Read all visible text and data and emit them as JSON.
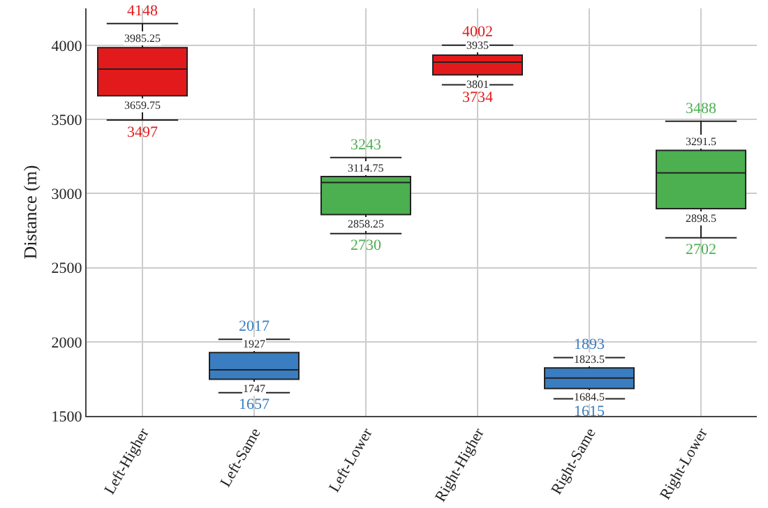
{
  "chart_data": {
    "type": "box",
    "ylabel": "Distance (m)",
    "categories": [
      "Left-Higher",
      "Left-Same",
      "Left-Lower",
      "Right-Higher",
      "Right-Same",
      "Right-Lower"
    ],
    "series": [
      {
        "color": "#e31a1c",
        "boxes": [
          {
            "low": 3497,
            "q1": 3659.75,
            "median": 3840,
            "q3": 3985.25,
            "high": 4148
          },
          null,
          null,
          {
            "low": 3734,
            "q1": 3801,
            "median": 3887,
            "q3": 3935,
            "high": 4002
          },
          null,
          null
        ]
      },
      {
        "color": "#3a7dc0",
        "boxes": [
          null,
          {
            "low": 1657,
            "q1": 1747,
            "median": 1811,
            "q3": 1927,
            "high": 2017
          },
          null,
          null,
          {
            "low": 1615,
            "q1": 1684.5,
            "median": 1755,
            "q3": 1823.5,
            "high": 1893
          },
          null
        ]
      },
      {
        "color": "#4caf50",
        "boxes": [
          null,
          null,
          {
            "low": 2730,
            "q1": 2858.25,
            "median": 3075,
            "q3": 3114.75,
            "high": 3243
          },
          null,
          null,
          {
            "low": 2702,
            "q1": 2898.5,
            "median": 3140,
            "q3": 3291.5,
            "high": 3488
          }
        ]
      }
    ],
    "annotations": [
      {
        "text": "4148",
        "x": "Left-Higher",
        "y": 4148
      },
      {
        "text": "3985.25",
        "x": "Left-Higher",
        "y": 3985.25
      },
      {
        "text": "3659.75",
        "x": "Left-Higher",
        "y": 3659.75
      },
      {
        "text": "3497",
        "x": "Left-Higher",
        "y": 3497
      },
      {
        "text": "2017",
        "x": "Left-Same",
        "y": 2017
      },
      {
        "text": "1927",
        "x": "Left-Same",
        "y": 1927
      },
      {
        "text": "1747",
        "x": "Left-Same",
        "y": 1747
      },
      {
        "text": "1657",
        "x": "Left-Same",
        "y": 1657
      },
      {
        "text": "3243",
        "x": "Left-Lower",
        "y": 3243
      },
      {
        "text": "3114.75",
        "x": "Left-Lower",
        "y": 3114.75
      },
      {
        "text": "2858.25",
        "x": "Left-Lower",
        "y": 2858.25
      },
      {
        "text": "2730",
        "x": "Left-Lower",
        "y": 2730
      },
      {
        "text": "4002",
        "x": "Right-Higher",
        "y": 4002
      },
      {
        "text": "3935",
        "x": "Right-Higher",
        "y": 3935
      },
      {
        "text": "3801",
        "x": "Right-Higher",
        "y": 3801
      },
      {
        "text": "3734",
        "x": "Right-Higher",
        "y": 3734
      },
      {
        "text": "1893",
        "x": "Right-Same",
        "y": 1893
      },
      {
        "text": "1823.5",
        "x": "Right-Same",
        "y": 1823.5
      },
      {
        "text": "1684.5",
        "x": "Right-Same",
        "y": 1684.5
      },
      {
        "text": "1615",
        "x": "Right-Same",
        "y": 1615
      },
      {
        "text": "3488",
        "x": "Right-Lower",
        "y": 3488
      },
      {
        "text": "3291.5",
        "x": "Right-Lower",
        "y": 3291.5
      },
      {
        "text": "2898.5",
        "x": "Right-Lower",
        "y": 2898.5
      },
      {
        "text": "2702",
        "x": "Right-Lower",
        "y": 2702
      }
    ],
    "ylim": [
      1500,
      4250
    ],
    "yticks": [
      1500,
      2000,
      2500,
      3000,
      3500,
      4000
    ],
    "grid": true
  }
}
